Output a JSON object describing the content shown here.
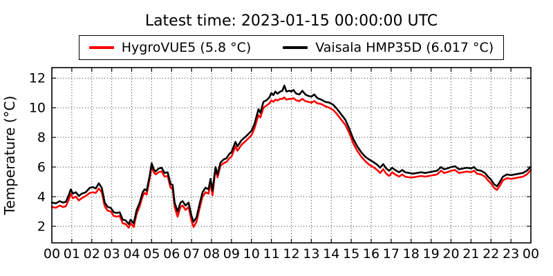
{
  "title": "Latest time: 2023-01-15 00:00:00 UTC",
  "legend": {
    "items": [
      {
        "label": "HygroVUE5 (5.8 °C)",
        "color": "#ff0000"
      },
      {
        "label": "Vaisala HMP35D (6.017 °C)",
        "color": "#000000"
      }
    ]
  },
  "chart_data": {
    "type": "line",
    "title": "Latest time: 2023-01-15 00:00:00 UTC",
    "xlabel": "",
    "ylabel": "Temperature (°C)",
    "xlim": [
      0,
      24
    ],
    "ylim": [
      0.88,
      12.71
    ],
    "grid": true,
    "grid_style": "dotted",
    "legend_position": "top-center",
    "x_ticks": [
      0,
      1,
      2,
      3,
      4,
      5,
      6,
      7,
      8,
      9,
      10,
      11,
      12,
      13,
      14,
      15,
      16,
      17,
      18,
      19,
      20,
      21,
      22,
      23,
      24
    ],
    "x_tick_labels": [
      "00",
      "01",
      "02",
      "03",
      "04",
      "05",
      "06",
      "07",
      "08",
      "09",
      "10",
      "11",
      "12",
      "13",
      "14",
      "15",
      "16",
      "17",
      "18",
      "19",
      "20",
      "21",
      "22",
      "23",
      "00"
    ],
    "y_ticks": [
      2,
      4,
      6,
      8,
      10,
      12
    ],
    "y_tick_labels": [
      "2",
      "4",
      "6",
      "8",
      "10",
      "12"
    ],
    "x": [
      0.0,
      0.2,
      0.4,
      0.55,
      0.7,
      0.85,
      0.95,
      1.05,
      1.2,
      1.35,
      1.5,
      1.7,
      1.9,
      2.05,
      2.2,
      2.35,
      2.5,
      2.65,
      2.8,
      2.95,
      3.1,
      3.25,
      3.4,
      3.55,
      3.7,
      3.85,
      3.95,
      4.1,
      4.25,
      4.4,
      4.55,
      4.65,
      4.75,
      4.9,
      5.0,
      5.1,
      5.2,
      5.35,
      5.5,
      5.65,
      5.8,
      5.95,
      6.05,
      6.15,
      6.3,
      6.45,
      6.55,
      6.7,
      6.85,
      7.0,
      7.1,
      7.25,
      7.4,
      7.55,
      7.7,
      7.85,
      7.95,
      8.05,
      8.2,
      8.3,
      8.45,
      8.6,
      8.75,
      8.9,
      9.0,
      9.2,
      9.3,
      9.5,
      9.75,
      10.0,
      10.15,
      10.35,
      10.45,
      10.6,
      10.75,
      10.9,
      11.0,
      11.1,
      11.2,
      11.3,
      11.45,
      11.55,
      11.65,
      11.75,
      11.9,
      12.0,
      12.1,
      12.25,
      12.4,
      12.55,
      12.7,
      12.85,
      13.0,
      13.15,
      13.3,
      13.5,
      13.7,
      13.9,
      14.1,
      14.3,
      14.5,
      14.7,
      14.9,
      15.1,
      15.3,
      15.5,
      15.7,
      15.9,
      16.1,
      16.3,
      16.45,
      16.6,
      16.75,
      16.9,
      17.05,
      17.2,
      17.4,
      17.55,
      17.7,
      17.9,
      18.1,
      18.3,
      18.5,
      18.7,
      18.9,
      19.1,
      19.3,
      19.5,
      19.65,
      19.8,
      20.0,
      20.2,
      20.4,
      20.6,
      20.8,
      21.0,
      21.15,
      21.3,
      21.5,
      21.7,
      21.85,
      22.0,
      22.15,
      22.3,
      22.45,
      22.6,
      22.8,
      23.0,
      23.2,
      23.4,
      23.6,
      23.8,
      24.0
    ],
    "series": [
      {
        "name": "HygroVUE5 (5.8 °C)",
        "color": "#ff0000",
        "latest_value_c": 5.8,
        "values": [
          3.3,
          3.25,
          3.4,
          3.3,
          3.35,
          3.8,
          4.2,
          3.9,
          4.0,
          3.75,
          3.9,
          4.05,
          4.25,
          4.3,
          4.25,
          4.55,
          4.3,
          3.35,
          3.05,
          3.0,
          2.7,
          2.65,
          2.7,
          2.2,
          2.15,
          1.9,
          2.2,
          1.95,
          2.85,
          3.35,
          4.05,
          4.25,
          4.15,
          5.2,
          6.1,
          5.65,
          5.5,
          5.65,
          5.7,
          5.35,
          5.4,
          4.6,
          4.55,
          3.3,
          2.65,
          3.3,
          3.4,
          3.1,
          3.3,
          2.35,
          1.95,
          2.3,
          3.2,
          4.0,
          4.3,
          4.2,
          5.0,
          4.1,
          5.9,
          5.3,
          6.1,
          6.25,
          6.35,
          6.6,
          6.7,
          7.4,
          7.1,
          7.5,
          7.8,
          8.15,
          8.6,
          9.5,
          9.35,
          10.0,
          10.15,
          10.3,
          10.5,
          10.4,
          10.55,
          10.5,
          10.6,
          10.6,
          10.7,
          10.55,
          10.6,
          10.6,
          10.65,
          10.5,
          10.45,
          10.6,
          10.45,
          10.4,
          10.35,
          10.45,
          10.3,
          10.25,
          10.1,
          10.0,
          9.85,
          9.55,
          9.2,
          8.85,
          8.3,
          7.6,
          7.1,
          6.7,
          6.4,
          6.15,
          6.0,
          5.8,
          5.6,
          5.85,
          5.55,
          5.4,
          5.65,
          5.5,
          5.35,
          5.5,
          5.35,
          5.3,
          5.3,
          5.35,
          5.4,
          5.35,
          5.4,
          5.45,
          5.5,
          5.75,
          5.6,
          5.65,
          5.75,
          5.8,
          5.6,
          5.65,
          5.7,
          5.65,
          5.75,
          5.55,
          5.5,
          5.35,
          5.1,
          4.9,
          4.6,
          4.45,
          4.75,
          5.1,
          5.25,
          5.2,
          5.25,
          5.3,
          5.35,
          5.5,
          5.8
        ]
      },
      {
        "name": "Vaisala HMP35D (6.017 °C)",
        "color": "#000000",
        "latest_value_c": 6.017,
        "values": [
          3.6,
          3.55,
          3.7,
          3.6,
          3.65,
          4.1,
          4.5,
          4.2,
          4.3,
          4.05,
          4.2,
          4.3,
          4.6,
          4.65,
          4.55,
          4.9,
          4.6,
          3.6,
          3.3,
          3.25,
          2.95,
          2.9,
          2.95,
          2.45,
          2.4,
          2.15,
          2.45,
          2.2,
          3.1,
          3.6,
          4.3,
          4.5,
          4.4,
          5.4,
          6.25,
          5.85,
          5.7,
          5.9,
          5.95,
          5.6,
          5.65,
          4.85,
          4.8,
          3.6,
          3.0,
          3.6,
          3.7,
          3.4,
          3.6,
          2.7,
          2.3,
          2.6,
          3.5,
          4.3,
          4.6,
          4.5,
          5.2,
          4.4,
          6.0,
          5.5,
          6.3,
          6.5,
          6.6,
          6.9,
          7.0,
          7.7,
          7.4,
          7.8,
          8.1,
          8.45,
          8.9,
          9.9,
          9.65,
          10.4,
          10.5,
          10.7,
          11.0,
          10.85,
          11.1,
          10.95,
          11.1,
          11.15,
          11.5,
          11.1,
          11.15,
          11.1,
          11.2,
          10.95,
          10.9,
          11.15,
          10.9,
          10.8,
          10.75,
          10.9,
          10.65,
          10.55,
          10.4,
          10.35,
          10.2,
          9.9,
          9.55,
          9.2,
          8.6,
          7.9,
          7.4,
          7.0,
          6.7,
          6.5,
          6.35,
          6.15,
          5.95,
          6.2,
          5.9,
          5.75,
          5.95,
          5.8,
          5.65,
          5.8,
          5.65,
          5.6,
          5.55,
          5.6,
          5.65,
          5.6,
          5.65,
          5.7,
          5.75,
          6.0,
          5.85,
          5.9,
          6.0,
          6.05,
          5.85,
          5.9,
          5.95,
          5.9,
          6.0,
          5.8,
          5.75,
          5.6,
          5.35,
          5.15,
          4.85,
          4.7,
          5.0,
          5.35,
          5.5,
          5.45,
          5.5,
          5.55,
          5.6,
          5.75,
          6.017
        ]
      }
    ]
  }
}
